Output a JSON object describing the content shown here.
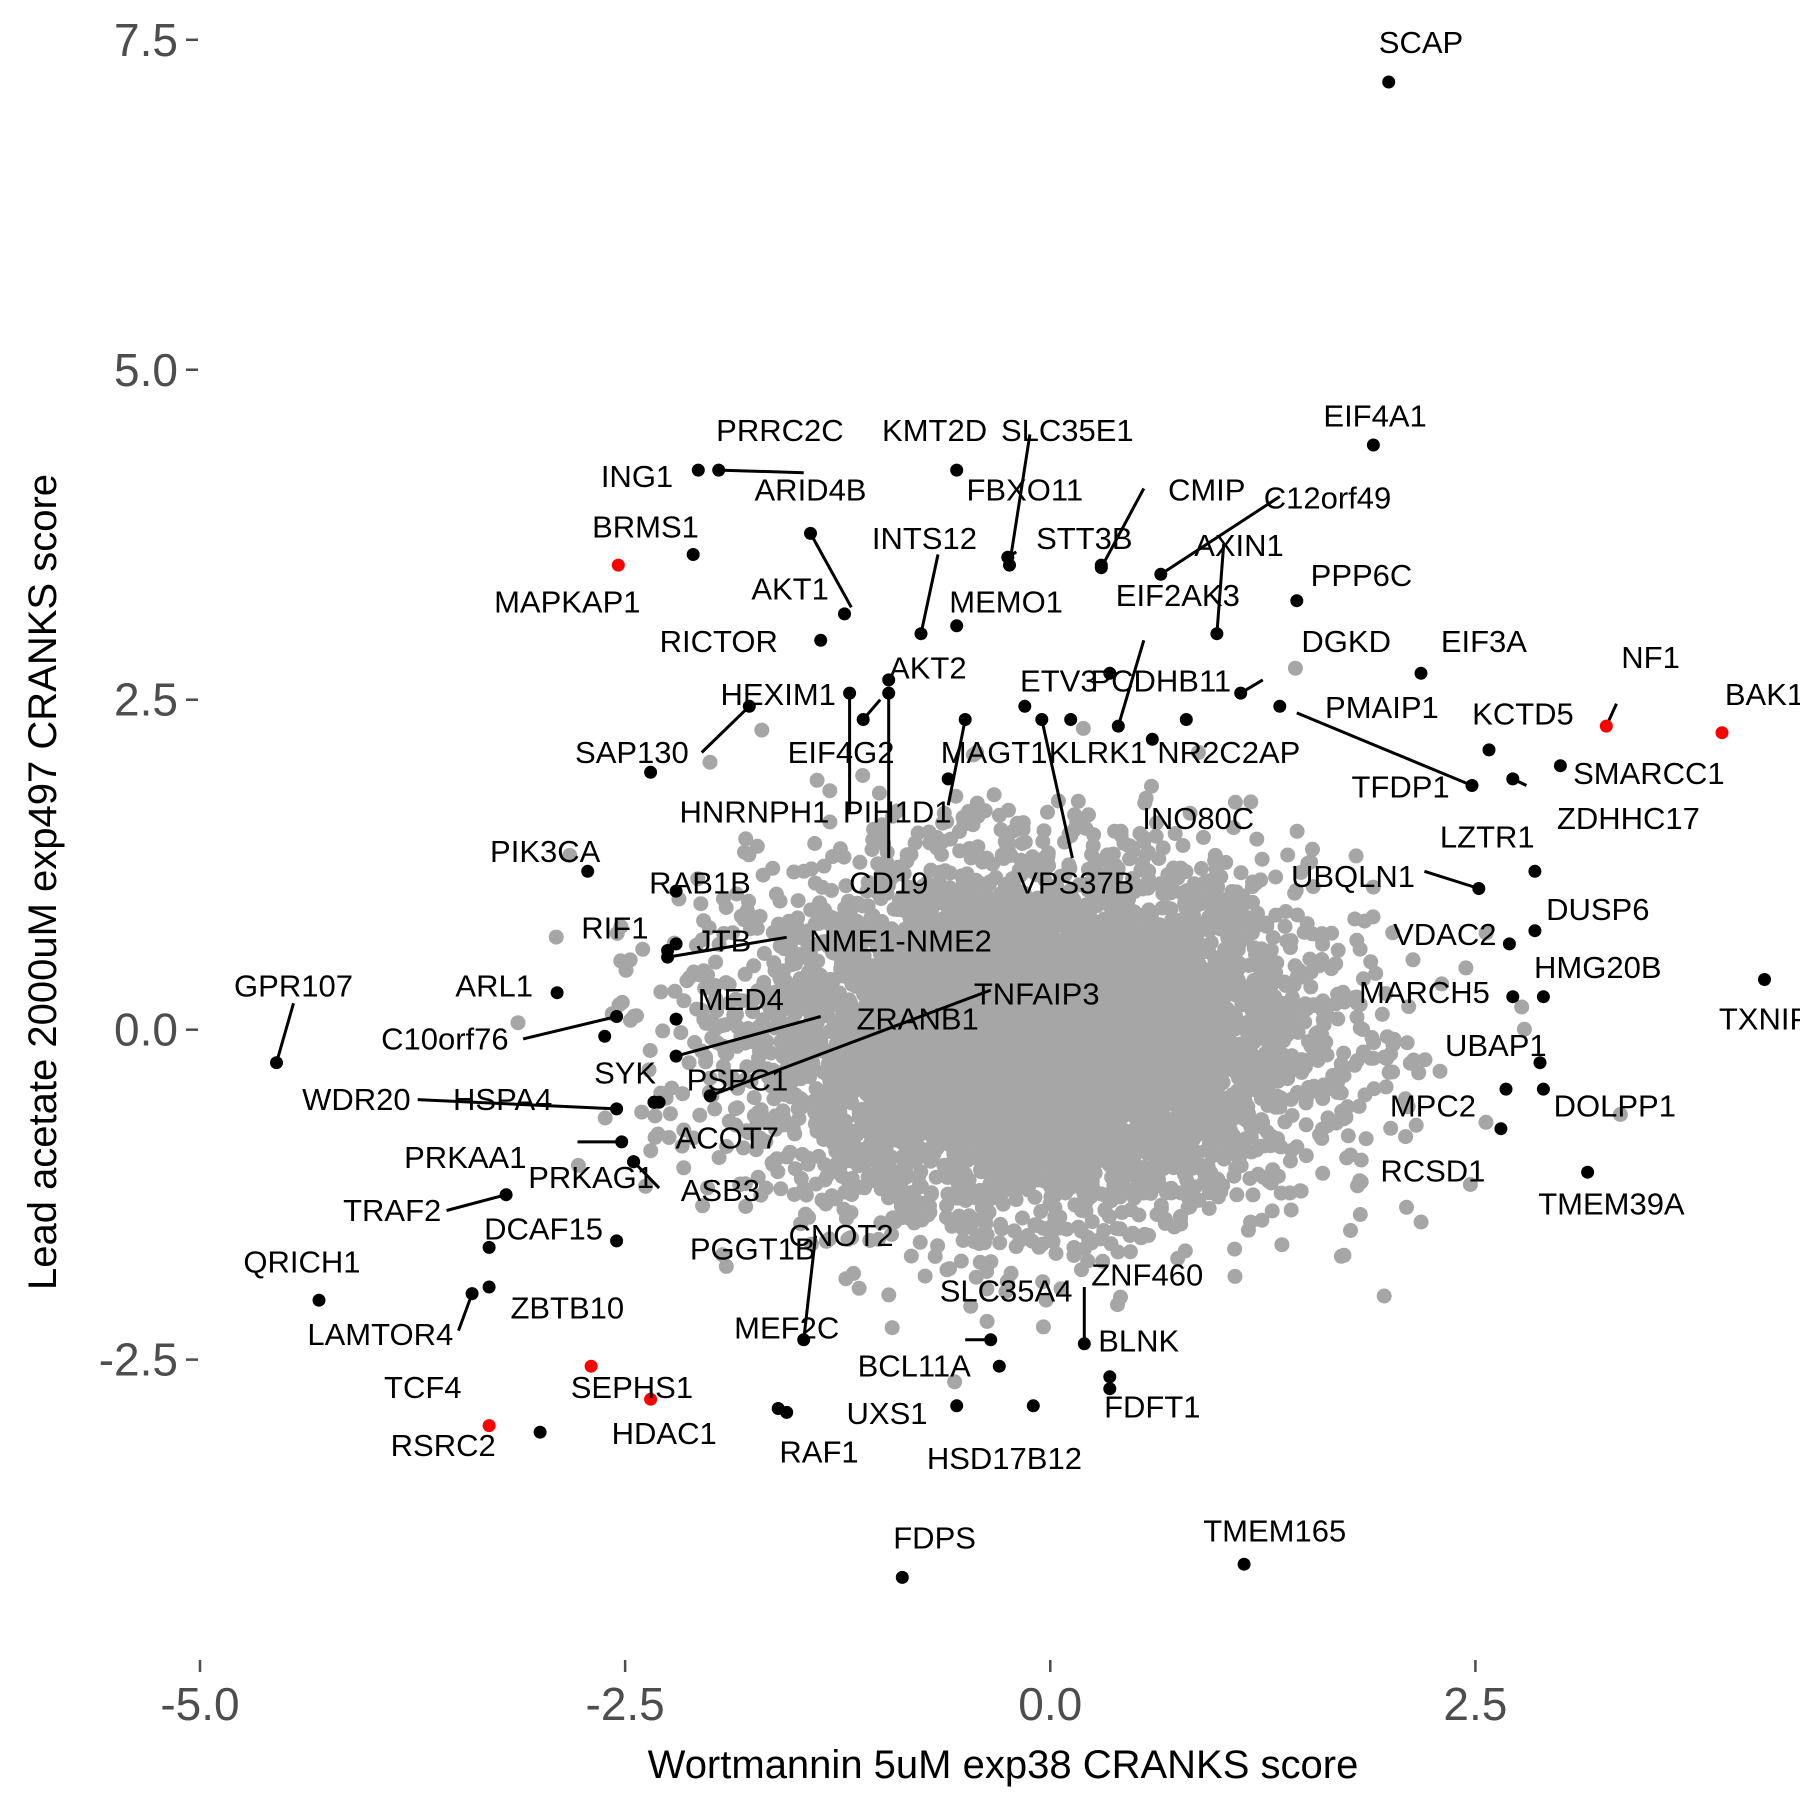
{
  "chart_data": {
    "type": "scatter",
    "title": "",
    "xlabel": "Wortmannin 5uM exp38 CRANKS score",
    "ylabel": "Lead acetate 2000uM exp497 CRANKS score",
    "xlim": [
      -5.0,
      4.35
    ],
    "ylim": [
      -4.7,
      7.65
    ],
    "xticks": [
      -5.0,
      -2.5,
      0.0,
      2.5
    ],
    "xtick_labels": [
      "-5.0",
      "-2.5",
      "0.0",
      "2.5"
    ],
    "yticks": [
      -2.5,
      0.0,
      2.5,
      5.0,
      7.5
    ],
    "ytick_labels": [
      "-2.5",
      "0.0",
      "2.5",
      "5.0",
      "7.5"
    ],
    "grid": false,
    "background_cloud": {
      "color": "#a6a6a6",
      "description": "dense cloud of non-labeled genes centered near (0, 0)",
      "center": [
        -0.1,
        -0.05
      ],
      "spread": [
        1.3,
        1.05
      ]
    },
    "colors": {
      "labeled": "#000000",
      "highlighted": "#ff0000",
      "background": "#a6a6a6",
      "leader_line": "#000000"
    },
    "points": [
      {
        "label": "SCAP",
        "x": 1.99,
        "y": 7.18,
        "color": "black",
        "lx": 2.18,
        "ly": 7.48
      },
      {
        "label": "EIF4A1",
        "x": 1.9,
        "y": 4.43,
        "color": "black",
        "lx": 1.91,
        "ly": 4.65
      },
      {
        "label": "PRRC2C",
        "x": -1.95,
        "y": 4.24,
        "color": "black",
        "lx": -1.59,
        "ly": 4.54,
        "line": [
          -1.45,
          4.22
        ]
      },
      {
        "label": "KMT2D",
        "x": -0.55,
        "y": 4.24,
        "color": "black",
        "lx": -0.68,
        "ly": 4.54
      },
      {
        "label": "SLC35E1",
        "x": -0.24,
        "y": 3.52,
        "color": "black",
        "lx": 0.1,
        "ly": 4.54,
        "line": [
          -0.12,
          4.51
        ]
      },
      {
        "label": "ING1",
        "x": -2.07,
        "y": 4.24,
        "color": "black",
        "lx": -2.43,
        "ly": 4.19
      },
      {
        "label": "ARID4B",
        "x": -1.41,
        "y": 3.76,
        "color": "black",
        "lx": -1.41,
        "ly": 4.09,
        "line": [
          -1.17,
          3.2
        ]
      },
      {
        "label": "FBXO11",
        "x": -0.25,
        "y": 3.58,
        "color": "black",
        "lx": -0.15,
        "ly": 4.09,
        "line": [
          -0.2,
          3.62
        ]
      },
      {
        "label": "CMIP",
        "x": 0.3,
        "y": 3.5,
        "color": "black",
        "lx": 0.92,
        "ly": 4.09,
        "line": [
          0.55,
          4.1
        ]
      },
      {
        "label": "C12orf49",
        "x": 0.65,
        "y": 3.45,
        "color": "black",
        "lx": 1.63,
        "ly": 4.03,
        "line": [
          1.35,
          4.04
        ]
      },
      {
        "label": "BRMS1",
        "x": -2.1,
        "y": 3.6,
        "color": "black",
        "lx": -2.38,
        "ly": 3.81
      },
      {
        "label": "INTS12",
        "x": -0.76,
        "y": 3.0,
        "color": "black",
        "lx": -0.74,
        "ly": 3.72,
        "line": [
          -0.66,
          3.6
        ]
      },
      {
        "label": "STT3B",
        "x": 0.3,
        "y": 3.52,
        "color": "black",
        "lx": 0.2,
        "ly": 3.72
      },
      {
        "label": "AXIN1",
        "x": 0.98,
        "y": 3.0,
        "color": "black",
        "lx": 1.11,
        "ly": 3.67,
        "line": [
          1.02,
          3.68
        ]
      },
      {
        "label": "MAPKAP1",
        "x": -2.54,
        "y": 3.52,
        "color": "red",
        "lx": -2.84,
        "ly": 3.24
      },
      {
        "label": "AKT1",
        "x": -1.21,
        "y": 3.15,
        "color": "black",
        "lx": -1.53,
        "ly": 3.34
      },
      {
        "label": "MEMO1",
        "x": -0.55,
        "y": 3.06,
        "color": "black",
        "lx": -0.26,
        "ly": 3.24
      },
      {
        "label": "EIF2AK3",
        "x": 0.4,
        "y": 2.3,
        "color": "black",
        "lx": 0.75,
        "ly": 3.29,
        "line": [
          0.55,
          2.95
        ]
      },
      {
        "label": "PPP6C",
        "x": 1.45,
        "y": 3.25,
        "color": "black",
        "lx": 1.83,
        "ly": 3.44
      },
      {
        "label": "RICTOR",
        "x": -1.35,
        "y": 2.95,
        "color": "black",
        "lx": -1.95,
        "ly": 2.94
      },
      {
        "label": "DGKD",
        "x": 1.12,
        "y": 2.55,
        "color": "black",
        "lx": 1.74,
        "ly": 2.94,
        "line": [
          1.25,
          2.65
        ]
      },
      {
        "label": "EIF3A",
        "x": 2.18,
        "y": 2.7,
        "color": "black",
        "lx": 2.55,
        "ly": 2.94
      },
      {
        "label": "NF1",
        "x": 3.27,
        "y": 2.3,
        "color": "red",
        "lx": 3.53,
        "ly": 2.82,
        "line": [
          3.33,
          2.47
        ]
      },
      {
        "label": "AKT2",
        "x": -0.95,
        "y": 2.65,
        "color": "black",
        "lx": -0.72,
        "ly": 2.74
      },
      {
        "label": "ETV3",
        "x": -0.15,
        "y": 2.45,
        "color": "black",
        "lx": 0.05,
        "ly": 2.64
      },
      {
        "label": "PCDHB11",
        "x": 0.35,
        "y": 2.7,
        "color": "black",
        "lx": 0.65,
        "ly": 2.64
      },
      {
        "label": "BAK1",
        "x": 3.95,
        "y": 2.25,
        "color": "red",
        "lx": 4.2,
        "ly": 2.54
      },
      {
        "label": "HEXIM1",
        "x": -1.77,
        "y": 2.45,
        "color": "black",
        "lx": -1.6,
        "ly": 2.54,
        "line": [
          -2.05,
          2.1
        ]
      },
      {
        "label": "PMAIP1",
        "x": 1.35,
        "y": 2.45,
        "color": "black",
        "lx": 1.95,
        "ly": 2.44
      },
      {
        "label": "KCTD5",
        "x": 2.58,
        "y": 2.12,
        "color": "black",
        "lx": 2.78,
        "ly": 2.39
      },
      {
        "label": "SAP130",
        "x": -2.35,
        "y": 1.95,
        "color": "black",
        "lx": -2.46,
        "ly": 2.1
      },
      {
        "label": "EIF4G2",
        "x": -1.1,
        "y": 2.35,
        "color": "black",
        "lx": -1.23,
        "ly": 2.1,
        "line": [
          -1.0,
          2.5
        ]
      },
      {
        "label": "MAGT1",
        "x": -0.5,
        "y": 2.35,
        "color": "black",
        "lx": -0.33,
        "ly": 2.1,
        "line": [
          -0.6,
          1.7
        ]
      },
      {
        "label": "KLRK1",
        "x": 0.12,
        "y": 2.35,
        "color": "black",
        "lx": 0.28,
        "ly": 2.1
      },
      {
        "label": "NR2C2AP",
        "x": 0.8,
        "y": 2.35,
        "color": "black",
        "lx": 1.05,
        "ly": 2.1
      },
      {
        "label": "SMARCC1",
        "x": 3.0,
        "y": 2.0,
        "color": "black",
        "lx": 3.52,
        "ly": 1.94
      },
      {
        "label": "TFDP1",
        "x": 2.48,
        "y": 1.85,
        "color": "black",
        "lx": 2.06,
        "ly": 1.84,
        "line": [
          1.45,
          2.4
        ]
      },
      {
        "label": "HNRNPH1",
        "x": -1.18,
        "y": 2.55,
        "color": "black",
        "lx": -1.74,
        "ly": 1.65,
        "line": [
          -1.18,
          1.65
        ]
      },
      {
        "label": "PIH1D1",
        "x": -0.6,
        "y": 1.9,
        "color": "black",
        "lx": -0.9,
        "ly": 1.65
      },
      {
        "label": "INO80C",
        "x": 0.6,
        "y": 2.2,
        "color": "black",
        "lx": 0.87,
        "ly": 1.6,
        "line": [
          0.58,
          2.2
        ]
      },
      {
        "label": "ZDHHC17",
        "x": 2.72,
        "y": 1.9,
        "color": "black",
        "lx": 3.4,
        "ly": 1.6,
        "line": [
          2.8,
          1.85
        ]
      },
      {
        "label": "LZTR1",
        "x": 2.85,
        "y": 1.2,
        "color": "black",
        "lx": 2.57,
        "ly": 1.46
      },
      {
        "label": "PIK3CA",
        "x": -2.72,
        "y": 1.2,
        "color": "black",
        "lx": -2.97,
        "ly": 1.35
      },
      {
        "label": "CD19",
        "x": -0.95,
        "y": 2.55,
        "color": "black",
        "lx": -0.95,
        "ly": 1.11,
        "line": [
          -0.95,
          1.3
        ]
      },
      {
        "label": "VPS37B",
        "x": -0.05,
        "y": 2.35,
        "color": "black",
        "lx": 0.15,
        "ly": 1.11,
        "line": [
          0.13,
          1.3
        ]
      },
      {
        "label": "RAB1B",
        "x": -2.2,
        "y": 1.05,
        "color": "black",
        "lx": -2.06,
        "ly": 1.11
      },
      {
        "label": "UBQLN1",
        "x": 2.52,
        "y": 1.07,
        "color": "black",
        "lx": 1.78,
        "ly": 1.16,
        "line": [
          2.2,
          1.2
        ]
      },
      {
        "label": "DUSP6",
        "x": 2.85,
        "y": 0.75,
        "color": "black",
        "lx": 3.22,
        "ly": 0.91
      },
      {
        "label": "RIF1",
        "x": -2.2,
        "y": 0.65,
        "color": "black",
        "lx": -2.56,
        "ly": 0.77
      },
      {
        "label": "VDAC2",
        "x": 2.7,
        "y": 0.65,
        "color": "black",
        "lx": 2.32,
        "ly": 0.72
      },
      {
        "label": "JTB",
        "x": -2.25,
        "y": 0.6,
        "color": "black",
        "lx": -1.92,
        "ly": 0.67
      },
      {
        "label": "NME1-NME2",
        "x": -2.25,
        "y": 0.55,
        "color": "black",
        "lx": -0.88,
        "ly": 0.67,
        "line": [
          -1.55,
          0.7
        ]
      },
      {
        "label": "HMG20B",
        "x": 2.9,
        "y": 0.25,
        "color": "black",
        "lx": 3.22,
        "ly": 0.47
      },
      {
        "label": "GPR107",
        "x": -4.55,
        "y": -0.25,
        "color": "black",
        "lx": -4.45,
        "ly": 0.33,
        "line": [
          -4.45,
          0.2
        ]
      },
      {
        "label": "ARL1",
        "x": -2.9,
        "y": 0.28,
        "color": "black",
        "lx": -3.27,
        "ly": 0.33
      },
      {
        "label": "MARCH5",
        "x": 2.72,
        "y": 0.25,
        "color": "black",
        "lx": 2.2,
        "ly": 0.28
      },
      {
        "label": "TXNIP",
        "x": 4.2,
        "y": 0.38,
        "color": "black",
        "lx": 4.2,
        "ly": 0.08
      },
      {
        "label": "MED4",
        "x": -2.2,
        "y": 0.08,
        "color": "black",
        "lx": -1.82,
        "ly": 0.23
      },
      {
        "label": "TNFAIP3",
        "x": -2.0,
        "y": -0.5,
        "color": "black",
        "lx": -0.08,
        "ly": 0.27,
        "line": [
          -0.35,
          0.3
        ]
      },
      {
        "label": "ZRANB1",
        "x": -2.2,
        "y": -0.2,
        "color": "black",
        "lx": -0.78,
        "ly": 0.08,
        "line": [
          -1.35,
          0.1
        ]
      },
      {
        "label": "C10orf76",
        "x": -2.55,
        "y": 0.1,
        "color": "black",
        "lx": -3.56,
        "ly": -0.07,
        "line": [
          -3.1,
          -0.07
        ]
      },
      {
        "label": "SYK",
        "x": -2.62,
        "y": -0.05,
        "color": "black",
        "lx": -2.5,
        "ly": -0.33
      },
      {
        "label": "UBAP1",
        "x": 2.88,
        "y": -0.25,
        "color": "black",
        "lx": 2.62,
        "ly": -0.12
      },
      {
        "label": "PSPC1",
        "x": -2.3,
        "y": -0.55,
        "color": "black",
        "lx": -1.84,
        "ly": -0.38
      },
      {
        "label": "WDR20",
        "x": -2.55,
        "y": -0.6,
        "color": "black",
        "lx": -4.08,
        "ly": -0.53,
        "line": [
          -3.72,
          -0.53
        ]
      },
      {
        "label": "HSPA4",
        "x": -2.33,
        "y": -0.55,
        "color": "black",
        "lx": -3.22,
        "ly": -0.53
      },
      {
        "label": "MPC2",
        "x": 2.68,
        "y": -0.45,
        "color": "black",
        "lx": 2.25,
        "ly": -0.58
      },
      {
        "label": "DOLPP1",
        "x": 2.9,
        "y": -0.45,
        "color": "black",
        "lx": 3.32,
        "ly": -0.58
      },
      {
        "label": "ACOT7",
        "x": -2.33,
        "y": -0.55,
        "color": "black",
        "lx": -1.9,
        "ly": -0.82
      },
      {
        "label": "PRKAA1",
        "x": -2.52,
        "y": -0.85,
        "color": "black",
        "lx": -3.44,
        "ly": -0.97,
        "line": [
          -2.78,
          -0.85
        ]
      },
      {
        "label": "RCSD1",
        "x": 2.65,
        "y": -0.75,
        "color": "black",
        "lx": 2.25,
        "ly": -1.07
      },
      {
        "label": "PRKAG1",
        "x": -2.45,
        "y": -1.0,
        "color": "black",
        "lx": -2.7,
        "ly": -1.12
      },
      {
        "label": "ASB3",
        "x": -2.45,
        "y": -1.0,
        "color": "black",
        "lx": -1.94,
        "ly": -1.22,
        "line": [
          -2.3,
          -1.2
        ]
      },
      {
        "label": "TMEM39A",
        "x": 3.16,
        "y": -1.08,
        "color": "black",
        "lx": 3.3,
        "ly": -1.32
      },
      {
        "label": "TRAF2",
        "x": -3.2,
        "y": -1.25,
        "color": "black",
        "lx": -3.87,
        "ly": -1.37,
        "line": [
          -3.55,
          -1.37
        ]
      },
      {
        "label": "DCAF15",
        "x": -3.3,
        "y": -1.65,
        "color": "black",
        "lx": -2.98,
        "ly": -1.51
      },
      {
        "label": "CNOT2",
        "x": -1.45,
        "y": -2.35,
        "color": "black",
        "lx": -1.23,
        "ly": -1.56,
        "line": [
          -1.38,
          -1.56
        ]
      },
      {
        "label": "PGGT1B",
        "x": -2.55,
        "y": -1.6,
        "color": "black",
        "lx": -1.75,
        "ly": -1.66
      },
      {
        "label": "QRICH1",
        "x": -4.3,
        "y": -2.05,
        "color": "black",
        "lx": -4.4,
        "ly": -1.76
      },
      {
        "label": "ZNF460",
        "x": 0.2,
        "y": -2.38,
        "color": "black",
        "lx": 0.57,
        "ly": -1.86,
        "line": [
          0.2,
          -1.95
        ]
      },
      {
        "label": "SLC35A4",
        "x": -0.35,
        "y": -2.35,
        "color": "black",
        "lx": -0.26,
        "ly": -1.98,
        "line": [
          -0.5,
          -2.35
        ]
      },
      {
        "label": "ZBTB10",
        "x": -3.3,
        "y": -1.95,
        "color": "black",
        "lx": -2.84,
        "ly": -2.11
      },
      {
        "label": "MEF2C",
        "x": -1.6,
        "y": -2.87,
        "color": "black",
        "lx": -1.55,
        "ly": -2.26,
        "line": [
          -1.6,
          -2.85
        ]
      },
      {
        "label": "LAMTOR4",
        "x": -3.4,
        "y": -2.0,
        "color": "black",
        "lx": -3.94,
        "ly": -2.31,
        "line": [
          -3.48,
          -2.28
        ]
      },
      {
        "label": "BLNK",
        "x": 0.35,
        "y": -2.63,
        "color": "black",
        "lx": 0.52,
        "ly": -2.36
      },
      {
        "label": "BCL11A",
        "x": -0.3,
        "y": -2.55,
        "color": "black",
        "lx": -0.8,
        "ly": -2.55
      },
      {
        "label": "SEPHS1",
        "x": -2.7,
        "y": -2.55,
        "color": "red",
        "lx": -2.46,
        "ly": -2.71
      },
      {
        "label": "TCF4",
        "x": -3.3,
        "y": -3.0,
        "color": "red",
        "lx": -3.69,
        "ly": -2.71
      },
      {
        "label": "FDFT1",
        "x": 0.35,
        "y": -2.72,
        "color": "black",
        "lx": 0.6,
        "ly": -2.86
      },
      {
        "label": "HDAC1",
        "x": -2.35,
        "y": -2.8,
        "color": "red",
        "lx": -2.27,
        "ly": -3.06
      },
      {
        "label": "UXS1",
        "x": -0.55,
        "y": -2.85,
        "color": "black",
        "lx": -0.96,
        "ly": -2.91
      },
      {
        "label": "RSRC2",
        "x": -3.0,
        "y": -3.05,
        "color": "black",
        "lx": -3.57,
        "ly": -3.15
      },
      {
        "label": "RAF1",
        "x": -1.55,
        "y": -2.9,
        "color": "black",
        "lx": -1.36,
        "ly": -3.2
      },
      {
        "label": "HSD17B12",
        "x": -0.1,
        "y": -2.85,
        "color": "black",
        "lx": -0.27,
        "ly": -3.25
      },
      {
        "label": "TMEM165",
        "x": 1.14,
        "y": -4.05,
        "color": "black",
        "lx": 1.32,
        "ly": -3.8
      },
      {
        "label": "FDPS",
        "x": -0.87,
        "y": -4.15,
        "color": "black",
        "lx": -0.68,
        "ly": -3.85
      }
    ]
  }
}
